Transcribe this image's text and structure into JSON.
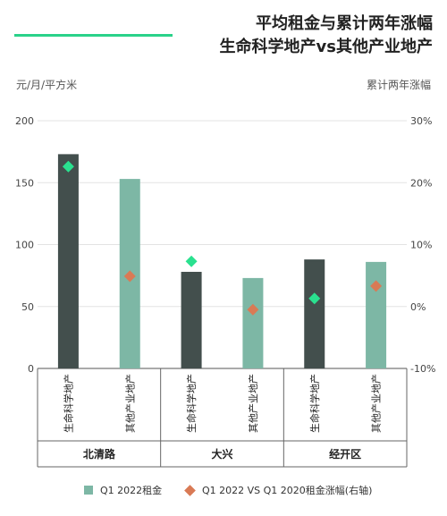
{
  "title_line1": "平均租金与累计两年涨幅",
  "title_line2": "生命科学地产vs其他产业地产",
  "colors": {
    "accent": "#2ad28a",
    "life_science_bar": "#434f4d",
    "other_bar": "#7db7a5",
    "growth_life_science": "#2ae18f",
    "growth_other": "#d97a55"
  },
  "chart_data": {
    "type": "bar",
    "left_axis_label": "元/月/平方米",
    "right_axis_label": "累计两年涨幅",
    "ylim": [
      0,
      200
    ],
    "yticks": [
      "0",
      "50",
      "100",
      "150",
      "200"
    ],
    "y2lim": [
      -10,
      30
    ],
    "y2ticks": [
      "-10%",
      "0%",
      "10%",
      "20%",
      "30%"
    ],
    "groups": [
      "北清路",
      "大兴",
      "经开区"
    ],
    "categories": [
      "生命科学地产",
      "其他产业地产",
      "生命科学地产",
      "其他产业地产",
      "生命科学地产",
      "其他产业地产"
    ],
    "series": [
      {
        "name": "Q1 2022租金",
        "axis": "left",
        "values": [
          173,
          153,
          78,
          73,
          88,
          86
        ]
      },
      {
        "name": "Q1 2022 VS Q1 2020租金涨幅(右轴)",
        "axis": "right",
        "values": [
          22.6,
          4.9,
          7.3,
          -0.5,
          1.3,
          3.3
        ]
      }
    ]
  }
}
